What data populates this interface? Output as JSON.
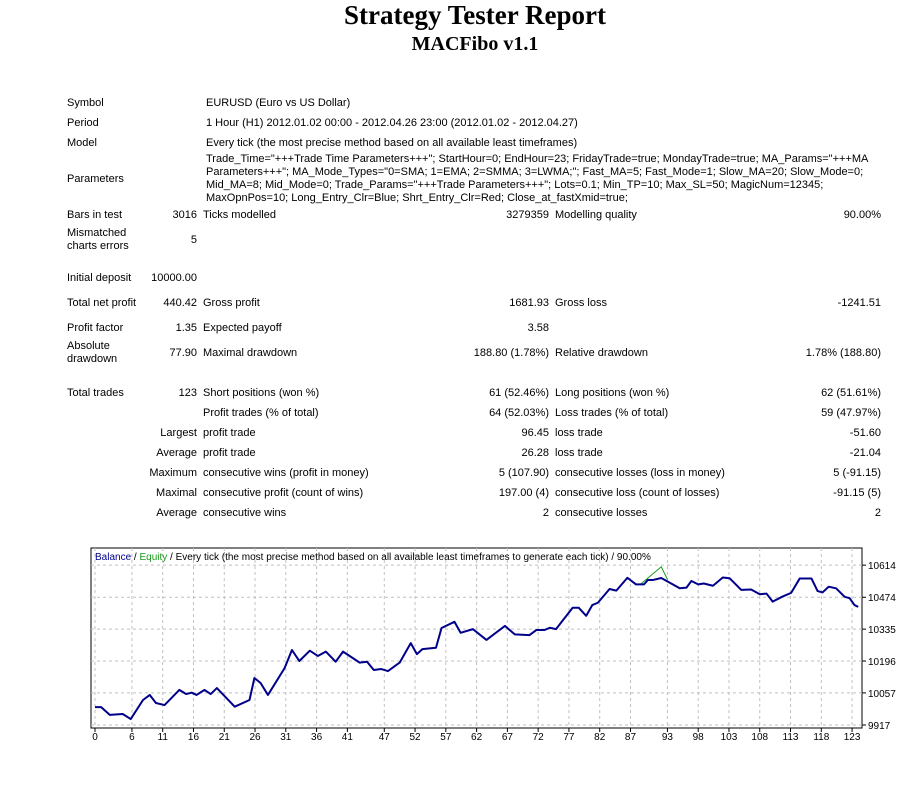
{
  "header": {
    "title": "Strategy Tester Report",
    "subtitle": "MACFibo v1.1"
  },
  "info": [
    {
      "label": "Symbol",
      "value": "EURUSD (Euro vs US Dollar)"
    },
    {
      "label": "Period",
      "value": "1 Hour (H1) 2012.01.02 00:00 - 2012.04.26 23:00 (2012.01.02 - 2012.04.27)"
    },
    {
      "label": "Model",
      "value": "Every tick (the most precise method based on all available least timeframes)"
    },
    {
      "label": "Parameters",
      "value": "Trade_Time=\"+++Trade Time Parameters+++\"; StartHour=0; EndHour=23; FridayTrade=true; MondayTrade=true; MA_Params=\"+++MA Parameters+++\"; MA_Mode_Types=\"0=SMA; 1=EMA; 2=SMMA; 3=LWMA;\"; Fast_MA=5; Fast_Mode=1; Slow_MA=20; Slow_Mode=0; Mid_MA=8; Mid_Mode=0; Trade_Params=\"+++Trade Parameters+++\"; Lots=0.1; Min_TP=10; Max_SL=50; MagicNum=12345; MaxOpnPos=10; Long_Entry_Clr=Blue; Shrt_Entry_Clr=Red; Close_at_fastXmid=true;"
    }
  ],
  "stats": [
    [
      "Bars in test",
      "3016",
      "Ticks modelled",
      "3279359",
      "Modelling quality",
      "90.00%"
    ],
    [
      "Mismatched charts errors",
      "5",
      "",
      "",
      "",
      ""
    ],
    null,
    [
      "Initial deposit",
      "10000.00",
      "",
      "",
      "",
      ""
    ],
    [
      "Total net profit",
      "440.42",
      "Gross profit",
      "1681.93",
      "Gross loss",
      "-1241.51"
    ],
    [
      "Profit factor",
      "1.35",
      "Expected payoff",
      "3.58",
      "",
      ""
    ],
    [
      "Absolute drawdown",
      "77.90",
      "Maximal drawdown",
      "188.80 (1.78%)",
      "Relative drawdown",
      "1.78% (188.80)"
    ],
    null,
    [
      "Total trades",
      "123",
      "Short positions (won %)",
      "61 (52.46%)",
      "Long positions (won %)",
      "62 (51.61%)"
    ],
    [
      "",
      "",
      "Profit trades (% of total)",
      "64 (52.03%)",
      "Loss trades (% of total)",
      "59 (47.97%)"
    ],
    [
      "",
      "Largest",
      "profit trade",
      "96.45",
      "loss trade",
      "-51.60"
    ],
    [
      "",
      "Average",
      "profit trade",
      "26.28",
      "loss trade",
      "-21.04"
    ],
    [
      "",
      "Maximum",
      "consecutive wins (profit in money)",
      "5 (107.90)",
      "consecutive losses (loss in money)",
      "5 (-91.15)"
    ],
    [
      "",
      "Maximal",
      "consecutive profit (count of wins)",
      "197.00 (4)",
      "consecutive loss (count of losses)",
      "-91.15 (5)"
    ],
    [
      "",
      "Average",
      "consecutive wins",
      "2",
      "consecutive losses",
      "2"
    ]
  ],
  "chart_data": {
    "type": "line",
    "legend": {
      "balance": "Balance",
      "sep1": " / ",
      "equity": "Equity",
      "rest": " / Every tick (the most precise method based on all available least timeframes to generate each tick) / 90.00%"
    },
    "colors": {
      "balance": "#00008b",
      "equity": "#1a9a1a",
      "grid": "#c0c0c0"
    },
    "grid": true,
    "xticks": [
      0,
      6,
      11,
      16,
      21,
      26,
      31,
      36,
      41,
      47,
      52,
      57,
      62,
      67,
      72,
      77,
      82,
      87,
      93,
      98,
      103,
      108,
      113,
      118,
      123
    ],
    "yticks": [
      10614,
      10474,
      10335,
      10196,
      10057,
      9917
    ],
    "ylim": [
      9917,
      10650
    ],
    "xlim": [
      0,
      124
    ],
    "series": [
      {
        "name": "Balance",
        "points": [
          [
            0,
            9995
          ],
          [
            1,
            9995
          ],
          [
            2.4,
            9961
          ],
          [
            4.5,
            9965
          ],
          [
            5.8,
            9943
          ],
          [
            7.8,
            10026
          ],
          [
            8.9,
            10048
          ],
          [
            9.9,
            10013
          ],
          [
            11.3,
            10004
          ],
          [
            13.7,
            10070
          ],
          [
            14.8,
            10052
          ],
          [
            15.7,
            10058
          ],
          [
            16.5,
            10048
          ],
          [
            17.8,
            10070
          ],
          [
            18.8,
            10052
          ],
          [
            19.8,
            10078
          ],
          [
            22.7,
            9997
          ],
          [
            25.1,
            10026
          ],
          [
            25.9,
            10122
          ],
          [
            26.9,
            10100
          ],
          [
            28.1,
            10048
          ],
          [
            30.8,
            10165
          ],
          [
            32,
            10244
          ],
          [
            33.2,
            10196
          ],
          [
            34.9,
            10241
          ],
          [
            36.2,
            10218
          ],
          [
            37.5,
            10237
          ],
          [
            39.1,
            10193
          ],
          [
            40.3,
            10237
          ],
          [
            43,
            10189
          ],
          [
            44.2,
            10193
          ],
          [
            45.3,
            10157
          ],
          [
            46.5,
            10161
          ],
          [
            47.6,
            10152
          ],
          [
            49.5,
            10189
          ],
          [
            51.3,
            10274
          ],
          [
            52.3,
            10226
          ],
          [
            53.2,
            10248
          ],
          [
            55.4,
            10254
          ],
          [
            56.3,
            10340
          ],
          [
            58.4,
            10367
          ],
          [
            59.4,
            10319
          ],
          [
            61.4,
            10335
          ],
          [
            63.6,
            10288
          ],
          [
            66.6,
            10349
          ],
          [
            68.2,
            10312
          ],
          [
            70.6,
            10309
          ],
          [
            71.7,
            10331
          ],
          [
            73,
            10331
          ],
          [
            73.9,
            10341
          ],
          [
            74.9,
            10335
          ],
          [
            77.6,
            10428
          ],
          [
            78.6,
            10428
          ],
          [
            79.8,
            10393
          ],
          [
            80.8,
            10440
          ],
          [
            81.7,
            10450
          ],
          [
            83.6,
            10510
          ],
          [
            84.7,
            10503
          ],
          [
            86.5,
            10559
          ],
          [
            87.9,
            10530
          ],
          [
            89.2,
            10530
          ],
          [
            89.8,
            10549
          ],
          [
            90.6,
            10549
          ],
          [
            92,
            10558
          ],
          [
            95,
            10513
          ],
          [
            96.1,
            10516
          ],
          [
            96.9,
            10545
          ],
          [
            98,
            10530
          ],
          [
            98.9,
            10534
          ],
          [
            100.4,
            10524
          ],
          [
            102,
            10560
          ],
          [
            103.1,
            10557
          ],
          [
            105,
            10506
          ],
          [
            106.6,
            10508
          ],
          [
            108,
            10487
          ],
          [
            109.1,
            10490
          ],
          [
            110.1,
            10455
          ],
          [
            111.7,
            10477
          ],
          [
            113.1,
            10493
          ],
          [
            114.5,
            10556
          ],
          [
            116.4,
            10556
          ],
          [
            117.4,
            10501
          ],
          [
            118.2,
            10495
          ],
          [
            119.2,
            10520
          ],
          [
            120.4,
            10513
          ],
          [
            121.8,
            10476
          ],
          [
            122.6,
            10470
          ],
          [
            123.4,
            10440
          ],
          [
            124,
            10432
          ]
        ]
      },
      {
        "name": "Equity",
        "points": [
          [
            88.6,
            10530
          ],
          [
            92,
            10607
          ],
          [
            93,
            10552
          ]
        ]
      }
    ]
  }
}
